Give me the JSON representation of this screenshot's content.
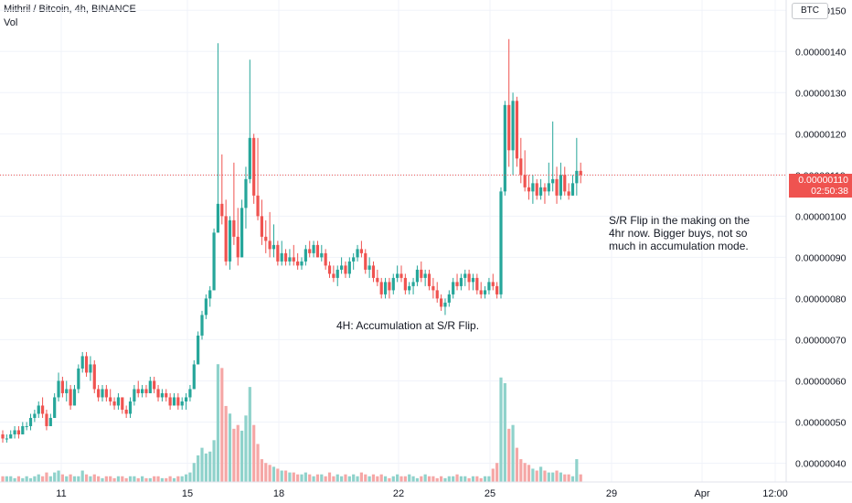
{
  "header": {
    "symbol_line": "Mithril / Bitcoin, 4h, BINANCE",
    "volume_label": "Vol"
  },
  "currency_button": "BTC",
  "price_tag": {
    "price": "0.00000110",
    "countdown": "02:50:38",
    "color": "#ef5350"
  },
  "annotations": {
    "box1_note": "4H: Accumulation at S/R Flip.",
    "box2_note_lines": [
      "S/R Flip in the making on the",
      "4hr now. Bigger buys, not so",
      "much in accumulation mode."
    ]
  },
  "colors": {
    "up": "#26a69a",
    "down": "#ef5350",
    "up_vol": "#8fd2cb",
    "down_vol": "#f5a7a6"
  },
  "chart_data": {
    "type": "candlestick",
    "y_axis": {
      "ticks": [
        "0.00000040",
        "0.00000050",
        "0.00000060",
        "0.00000070",
        "0.00000080",
        "0.00000090",
        "0.00000100",
        "0.00000110",
        "0.00000120",
        "0.00000130",
        "0.00000140",
        "0.00000150"
      ],
      "range": [
        3.7e-07,
        1.525e-06
      ]
    },
    "x_axis": {
      "ticks": [
        "11",
        "15",
        "18",
        "22",
        "25",
        "29",
        "Apr",
        "12:00"
      ]
    },
    "current_price": 1.1e-06,
    "zones": [
      {
        "from_tick": 49,
        "to_tick": 166,
        "low": 7.9e-07,
        "high": 9.3e-07
      },
      {
        "from_tick": 61,
        "to_tick": 196,
        "low": 1.05e-06,
        "high": 1.08e-06
      }
    ],
    "candles": [
      [
        47,
        48,
        45,
        46
      ],
      [
        46,
        47,
        45,
        46
      ],
      [
        46,
        48,
        46,
        47
      ],
      [
        47,
        49,
        46,
        48
      ],
      [
        48,
        49,
        46,
        47
      ],
      [
        47,
        50,
        47,
        49
      ],
      [
        49,
        50,
        48,
        49
      ],
      [
        49,
        52,
        48,
        51
      ],
      [
        51,
        53,
        50,
        52
      ],
      [
        52,
        55,
        51,
        54
      ],
      [
        54,
        56,
        51,
        52
      ],
      [
        52,
        53,
        48,
        49
      ],
      [
        49,
        52,
        49,
        51
      ],
      [
        51,
        57,
        51,
        56
      ],
      [
        56,
        62,
        55,
        60
      ],
      [
        60,
        61,
        56,
        57
      ],
      [
        57,
        60,
        55,
        58
      ],
      [
        58,
        59,
        53,
        54
      ],
      [
        54,
        59,
        54,
        58
      ],
      [
        58,
        64,
        57,
        63
      ],
      [
        63,
        67,
        62,
        66
      ],
      [
        66,
        67,
        61,
        62
      ],
      [
        62,
        66,
        60,
        64
      ],
      [
        64,
        65,
        57,
        58
      ],
      [
        58,
        59,
        55,
        56
      ],
      [
        56,
        59,
        55,
        58
      ],
      [
        58,
        59,
        55,
        56
      ],
      [
        56,
        58,
        54,
        55
      ],
      [
        55,
        56,
        53,
        54
      ],
      [
        54,
        57,
        53,
        56
      ],
      [
        56,
        56,
        52,
        53
      ],
      [
        53,
        54,
        51,
        52
      ],
      [
        52,
        56,
        51,
        55
      ],
      [
        55,
        59,
        54,
        58
      ],
      [
        58,
        60,
        56,
        57
      ],
      [
        57,
        59,
        56,
        58
      ],
      [
        58,
        59,
        56,
        57
      ],
      [
        57,
        61,
        57,
        60
      ],
      [
        60,
        61,
        57,
        58
      ],
      [
        58,
        59,
        55,
        56
      ],
      [
        56,
        58,
        55,
        57
      ],
      [
        57,
        58,
        55,
        56
      ],
      [
        56,
        57,
        53,
        54
      ],
      [
        54,
        57,
        54,
        56
      ],
      [
        56,
        57,
        53,
        54
      ],
      [
        54,
        56,
        53,
        55
      ],
      [
        55,
        57,
        53,
        56
      ],
      [
        56,
        59,
        55,
        58
      ],
      [
        58,
        65,
        58,
        64
      ],
      [
        64,
        72,
        64,
        71
      ],
      [
        71,
        77,
        70,
        76
      ],
      [
        76,
        81,
        75,
        80
      ],
      [
        80,
        83,
        78,
        82
      ],
      [
        82,
        97,
        82,
        96
      ],
      [
        96,
        142,
        96,
        103
      ],
      [
        103,
        115,
        98,
        100
      ],
      [
        100,
        104,
        88,
        89
      ],
      [
        89,
        100,
        87,
        99
      ],
      [
        99,
        113,
        93,
        95
      ],
      [
        95,
        102,
        88,
        90
      ],
      [
        90,
        104,
        90,
        102
      ],
      [
        102,
        112,
        97,
        109
      ],
      [
        109,
        138,
        108,
        119
      ],
      [
        119,
        120,
        103,
        105
      ],
      [
        105,
        119,
        99,
        100
      ],
      [
        100,
        104,
        93,
        95
      ],
      [
        95,
        99,
        91,
        94
      ],
      [
        94,
        101,
        90,
        92
      ],
      [
        92,
        98,
        90,
        93
      ],
      [
        93,
        94,
        88,
        89
      ],
      [
        89,
        94,
        88,
        91
      ],
      [
        91,
        92,
        88,
        89
      ],
      [
        89,
        92,
        88,
        90
      ],
      [
        90,
        93,
        88,
        89
      ],
      [
        89,
        91,
        87,
        88
      ],
      [
        88,
        90,
        87,
        89
      ],
      [
        89,
        93,
        88,
        92
      ],
      [
        92,
        94,
        90,
        91
      ],
      [
        91,
        94,
        90,
        93
      ],
      [
        93,
        94,
        90,
        90
      ],
      [
        90,
        93,
        89,
        91
      ],
      [
        91,
        92,
        87,
        88
      ],
      [
        88,
        89,
        85,
        86
      ],
      [
        86,
        88,
        84,
        85
      ],
      [
        85,
        88,
        83,
        87
      ],
      [
        87,
        90,
        86,
        88
      ],
      [
        88,
        89,
        85,
        86
      ],
      [
        86,
        90,
        85,
        89
      ],
      [
        89,
        91,
        87,
        90
      ],
      [
        90,
        93,
        89,
        92
      ],
      [
        92,
        94,
        90,
        91
      ],
      [
        91,
        92,
        86,
        87
      ],
      [
        87,
        90,
        85,
        88
      ],
      [
        88,
        89,
        84,
        85
      ],
      [
        85,
        87,
        83,
        84
      ],
      [
        84,
        85,
        80,
        81
      ],
      [
        81,
        85,
        80,
        84
      ],
      [
        84,
        85,
        80,
        82
      ],
      [
        82,
        86,
        81,
        85
      ],
      [
        85,
        88,
        84,
        86
      ],
      [
        86,
        88,
        84,
        85
      ],
      [
        85,
        86,
        81,
        82
      ],
      [
        82,
        84,
        81,
        83
      ],
      [
        83,
        85,
        81,
        84
      ],
      [
        84,
        88,
        83,
        87
      ],
      [
        87,
        89,
        84,
        85
      ],
      [
        85,
        87,
        83,
        86
      ],
      [
        86,
        87,
        82,
        83
      ],
      [
        83,
        85,
        80,
        82
      ],
      [
        82,
        84,
        79,
        80
      ],
      [
        80,
        81,
        77,
        78
      ],
      [
        78,
        80,
        76,
        79
      ],
      [
        79,
        82,
        78,
        81
      ],
      [
        81,
        85,
        80,
        84
      ],
      [
        84,
        86,
        82,
        83
      ],
      [
        83,
        86,
        82,
        85
      ],
      [
        85,
        87,
        83,
        86
      ],
      [
        86,
        87,
        82,
        84
      ],
      [
        84,
        86,
        82,
        85
      ],
      [
        85,
        86,
        81,
        82
      ],
      [
        82,
        84,
        80,
        81
      ],
      [
        81,
        83,
        80,
        82
      ],
      [
        82,
        85,
        81,
        84
      ],
      [
        84,
        86,
        82,
        83
      ],
      [
        83,
        84,
        80,
        81
      ],
      [
        81,
        107,
        80,
        106
      ],
      [
        106,
        128,
        105,
        127
      ],
      [
        127,
        143,
        112,
        116
      ],
      [
        116,
        130,
        110,
        128
      ],
      [
        128,
        129,
        112,
        114
      ],
      [
        114,
        119,
        108,
        110
      ],
      [
        110,
        116,
        106,
        107
      ],
      [
        107,
        110,
        104,
        106
      ],
      [
        106,
        110,
        103,
        108
      ],
      [
        108,
        109,
        104,
        105
      ],
      [
        105,
        109,
        104,
        107
      ],
      [
        107,
        108,
        103,
        106
      ],
      [
        106,
        113,
        105,
        108
      ],
      [
        108,
        123,
        106,
        109
      ],
      [
        109,
        112,
        103,
        105
      ],
      [
        105,
        113,
        104,
        110
      ],
      [
        110,
        112,
        105,
        106
      ],
      [
        106,
        108,
        104,
        105
      ],
      [
        105,
        110,
        105,
        108
      ],
      [
        108,
        119,
        105,
        111
      ],
      [
        111,
        113,
        108,
        110
      ]
    ],
    "volumes": [
      3,
      3,
      3,
      2,
      3,
      2,
      3,
      2,
      3,
      4,
      3,
      5,
      3,
      5,
      6,
      4,
      3,
      4,
      3,
      3,
      6,
      4,
      3,
      4,
      3,
      2,
      3,
      3,
      2,
      3,
      3,
      2,
      3,
      3,
      2,
      3,
      2,
      2,
      3,
      3,
      2,
      2,
      3,
      2,
      3,
      3,
      4,
      5,
      10,
      14,
      18,
      15,
      16,
      22,
      62,
      60,
      40,
      36,
      28,
      30,
      27,
      35,
      50,
      30,
      20,
      12,
      10,
      9,
      8,
      7,
      6,
      6,
      5,
      5,
      4,
      4,
      5,
      4,
      3,
      4,
      4,
      3,
      5,
      3,
      4,
      3,
      4,
      3,
      4,
      3,
      5,
      4,
      3,
      4,
      3,
      4,
      3,
      2,
      3,
      4,
      3,
      3,
      4,
      3,
      2,
      3,
      4,
      3,
      3,
      2,
      3,
      2,
      3,
      3,
      4,
      3,
      3,
      2,
      3,
      3,
      2,
      3,
      3,
      7,
      10,
      55,
      52,
      28,
      30,
      18,
      12,
      10,
      9,
      7,
      6,
      8,
      6,
      5,
      5,
      6,
      5,
      4,
      4,
      3,
      12,
      4
    ],
    "volume_max": 65
  }
}
